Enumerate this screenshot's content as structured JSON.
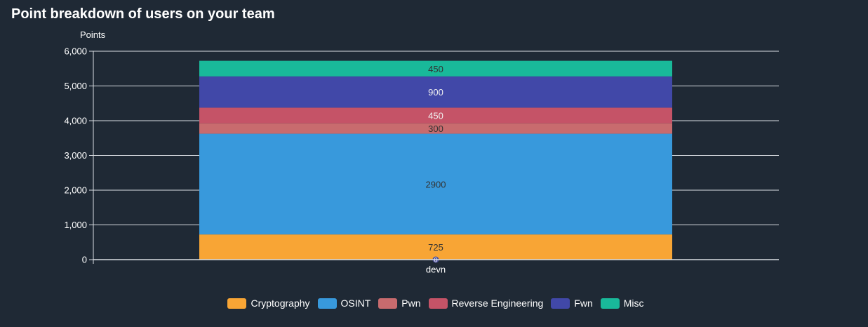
{
  "title": "Point breakdown of users on your team",
  "chart_data": {
    "type": "bar",
    "stacked": true,
    "ylabel": "Points",
    "ylim": [
      0,
      6000
    ],
    "yticks": [
      0,
      1000,
      2000,
      3000,
      4000,
      5000,
      6000
    ],
    "ytick_labels": [
      "0",
      "1,000",
      "2,000",
      "3,000",
      "4,000",
      "5,000",
      "6,000"
    ],
    "categories": [
      "devn"
    ],
    "grid": true,
    "legend_position": "bottom",
    "series": [
      {
        "name": "Cryptography",
        "values": [
          725
        ],
        "color": "#f8a535"
      },
      {
        "name": "OSINT",
        "values": [
          2900
        ],
        "color": "#3899dc"
      },
      {
        "name": "Pwn",
        "values": [
          300
        ],
        "color": "#c86b6e"
      },
      {
        "name": "Reverse Engineering",
        "values": [
          450
        ],
        "color": "#c55367"
      },
      {
        "name": "Fwn",
        "values": [
          900
        ],
        "color": "#4148a8"
      },
      {
        "name": "Misc",
        "values": [
          450
        ],
        "color": "#19b99a"
      }
    ],
    "marker_label": "0"
  }
}
